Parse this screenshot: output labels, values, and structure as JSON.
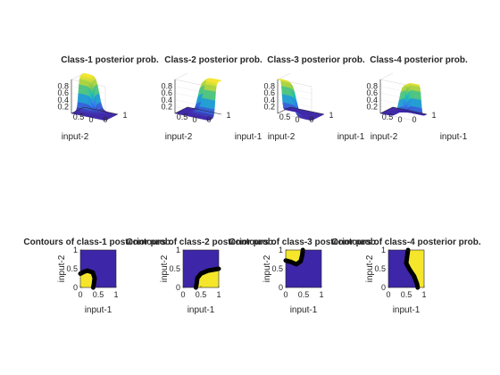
{
  "figure": {
    "background": "#ffffff",
    "colormap": [
      "#3e26a8",
      "#2f7eef",
      "#14beb5",
      "#8bcb4b",
      "#f5e62b"
    ]
  },
  "chart_data": [
    {
      "type": "surface",
      "title": "Class-1 posterior prob.",
      "xlabel": "",
      "ylabel": "input-2",
      "zticks": [
        "0.2",
        "0.4",
        "0.6",
        "0.8"
      ],
      "xticks": [
        "0",
        "0.5"
      ],
      "yticks": [
        "0",
        "1"
      ],
      "zlim": [
        0,
        1
      ],
      "high_region": "x < 0.45 and y < 0.45"
    },
    {
      "type": "surface",
      "title": "Class-2 posterior prob.",
      "xlabel": "input-1",
      "ylabel": "input-2",
      "zticks": [
        "0.2",
        "0.4",
        "0.6",
        "0.8"
      ],
      "xticks": [
        "0",
        "0.5"
      ],
      "yticks": [
        "0",
        "1"
      ],
      "zlim": [
        0,
        1
      ],
      "high_region": "x > 0.45 and y < 0.5"
    },
    {
      "type": "surface",
      "title": "Class-3 posterior prob.",
      "xlabel": "input-1",
      "ylabel": "input-2",
      "zticks": [
        "0.2",
        "0.4",
        "0.6",
        "0.8"
      ],
      "xticks": [
        "0",
        "0.5"
      ],
      "yticks": [
        "0",
        "1"
      ],
      "zlim": [
        0,
        1
      ],
      "high_region": "x < 0.45 and y > 0.65"
    },
    {
      "type": "surface",
      "title": "Class-4 posterior prob.",
      "xlabel": "input-1",
      "ylabel": "input-2",
      "zticks": [
        "0.2",
        "0.4",
        "0.6",
        "0.8"
      ],
      "xticks": [
        "0",
        "0.5"
      ],
      "yticks": [
        "0",
        "1"
      ],
      "zlim": [
        0,
        1
      ],
      "high_region": "x > 0.55 and y > 0.45"
    },
    {
      "type": "contour",
      "title": "Contours of class-1 posterior prob.",
      "xlabel": "input-1",
      "ylabel": "input-2",
      "xlim": [
        0,
        1
      ],
      "ylim": [
        0,
        1
      ],
      "xticks": [
        "0",
        "0.5",
        "1"
      ],
      "yticks": [
        "0",
        "0.5",
        "1"
      ],
      "fill_region": [
        [
          0,
          0
        ],
        [
          0,
          0.37
        ],
        [
          0.1,
          0.42
        ],
        [
          0.2,
          0.45
        ],
        [
          0.35,
          0.4
        ],
        [
          0.4,
          0.25
        ],
        [
          0.38,
          0.1
        ],
        [
          0.36,
          0
        ]
      ],
      "boundary": [
        [
          0,
          0.37
        ],
        [
          0.1,
          0.42
        ],
        [
          0.2,
          0.45
        ],
        [
          0.35,
          0.4
        ],
        [
          0.4,
          0.25
        ],
        [
          0.38,
          0.1
        ],
        [
          0.36,
          0
        ]
      ]
    },
    {
      "type": "contour",
      "title": "Contours of class-2 posterior prob.",
      "xlabel": "input-1",
      "ylabel": "input-2",
      "xlim": [
        0,
        1
      ],
      "ylim": [
        0,
        1
      ],
      "xticks": [
        "0",
        "0.5",
        "1"
      ],
      "yticks": [
        "0",
        "0.5",
        "1"
      ],
      "fill_region": [
        [
          0.36,
          0
        ],
        [
          0.38,
          0.1
        ],
        [
          0.4,
          0.25
        ],
        [
          0.5,
          0.37
        ],
        [
          0.7,
          0.45
        ],
        [
          1,
          0.5
        ],
        [
          1,
          0
        ]
      ],
      "boundary": [
        [
          0.36,
          0
        ],
        [
          0.38,
          0.1
        ],
        [
          0.4,
          0.25
        ],
        [
          0.5,
          0.37
        ],
        [
          0.7,
          0.45
        ],
        [
          1,
          0.5
        ]
      ]
    },
    {
      "type": "contour",
      "title": "Contours of class-3 posterior prob.",
      "xlabel": "input-1",
      "ylabel": "input-2",
      "xlim": [
        0,
        1
      ],
      "ylim": [
        0,
        1
      ],
      "xticks": [
        "0",
        "0.5",
        "1"
      ],
      "yticks": [
        "0",
        "0.5",
        "1"
      ],
      "fill_region": [
        [
          0,
          1
        ],
        [
          0,
          0.72
        ],
        [
          0.15,
          0.68
        ],
        [
          0.3,
          0.62
        ],
        [
          0.42,
          0.7
        ],
        [
          0.46,
          0.85
        ],
        [
          0.48,
          1
        ]
      ],
      "boundary": [
        [
          0,
          0.72
        ],
        [
          0.15,
          0.68
        ],
        [
          0.3,
          0.62
        ],
        [
          0.42,
          0.7
        ],
        [
          0.46,
          0.85
        ],
        [
          0.48,
          1
        ]
      ]
    },
    {
      "type": "contour",
      "title": "Contours of class-4 posterior prob.",
      "xlabel": "input-1",
      "ylabel": "input-2",
      "xlim": [
        0,
        1
      ],
      "ylim": [
        0,
        1
      ],
      "xticks": [
        "0",
        "0.5",
        "1"
      ],
      "yticks": [
        "0",
        "0.5",
        "1"
      ],
      "fill_region": [
        [
          0.55,
          1
        ],
        [
          0.52,
          0.8
        ],
        [
          0.5,
          0.65
        ],
        [
          0.58,
          0.5
        ],
        [
          0.72,
          0.3
        ],
        [
          0.8,
          0.1
        ],
        [
          0.82,
          0
        ],
        [
          1,
          0
        ],
        [
          1,
          1
        ]
      ],
      "boundary": [
        [
          0.55,
          1
        ],
        [
          0.52,
          0.8
        ],
        [
          0.5,
          0.65
        ],
        [
          0.58,
          0.5
        ],
        [
          0.72,
          0.3
        ],
        [
          0.8,
          0.1
        ],
        [
          0.82,
          0
        ]
      ]
    }
  ]
}
